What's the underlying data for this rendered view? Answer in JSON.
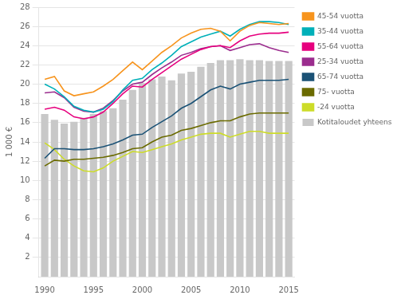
{
  "chart_data": {
    "type": "bar",
    "ylabel": "1 000 €",
    "x": [
      1990,
      1991,
      1992,
      1993,
      1994,
      1995,
      1996,
      1997,
      1998,
      1999,
      2000,
      2001,
      2002,
      2003,
      2004,
      2005,
      2006,
      2007,
      2008,
      2009,
      2010,
      2011,
      2012,
      2013,
      2014,
      2015
    ],
    "series": [
      {
        "name": "Kotitaloudet yhteensä",
        "type": "bar",
        "color": "#C8C8C8",
        "values": [
          16.9,
          16.3,
          15.9,
          16.1,
          16.5,
          16.9,
          17.2,
          17.5,
          18.4,
          19.4,
          20.1,
          20.5,
          20.8,
          20.4,
          21.1,
          21.3,
          21.8,
          22.2,
          22.5,
          22.5,
          22.6,
          22.5,
          22.5,
          22.4,
          22.4,
          22.4
        ]
      },
      {
        "name": "45-54 vuotta",
        "type": "line",
        "color": "#F7941D",
        "values": [
          20.5,
          20.8,
          19.3,
          18.8,
          19.0,
          19.2,
          19.8,
          20.5,
          21.4,
          22.3,
          21.5,
          22.4,
          23.3,
          24.0,
          24.8,
          25.3,
          25.7,
          25.8,
          25.5,
          24.5,
          25.5,
          26.1,
          26.4,
          26.3,
          26.2,
          26.3
        ]
      },
      {
        "name": "35-44 vuotta",
        "type": "line",
        "color": "#00B0B9",
        "values": [
          20.0,
          19.5,
          18.7,
          17.7,
          17.3,
          17.1,
          17.4,
          18.2,
          19.4,
          20.4,
          20.6,
          21.5,
          22.2,
          23.0,
          23.9,
          24.4,
          24.9,
          25.2,
          25.5,
          25.0,
          25.7,
          26.2,
          26.5,
          26.5,
          26.4,
          26.2
        ]
      },
      {
        "name": "55-64 vuotta",
        "type": "line",
        "color": "#E6007E",
        "values": [
          17.4,
          17.6,
          17.3,
          16.6,
          16.4,
          16.6,
          17.1,
          18.0,
          19.0,
          19.8,
          19.7,
          20.5,
          21.2,
          21.9,
          22.6,
          23.1,
          23.6,
          23.9,
          24.0,
          23.8,
          24.5,
          25.0,
          25.2,
          25.3,
          25.3,
          25.4
        ]
      },
      {
        "name": "25-34 vuotta",
        "type": "line",
        "color": "#9B2D8E",
        "values": [
          19.1,
          19.2,
          18.6,
          17.6,
          17.2,
          17.1,
          17.5,
          18.3,
          19.3,
          20.0,
          20.2,
          21.0,
          21.7,
          22.3,
          23.0,
          23.3,
          23.7,
          23.9,
          24.0,
          23.5,
          23.8,
          24.1,
          24.2,
          23.8,
          23.5,
          23.3
        ]
      },
      {
        "name": "65-74 vuotta",
        "type": "line",
        "color": "#1B5276",
        "values": [
          12.3,
          13.3,
          13.3,
          13.2,
          13.2,
          13.3,
          13.5,
          13.8,
          14.2,
          14.7,
          14.8,
          15.5,
          16.1,
          16.7,
          17.5,
          18.0,
          18.7,
          19.4,
          19.8,
          19.5,
          20.0,
          20.2,
          20.4,
          20.4,
          20.4,
          20.5
        ]
      },
      {
        "name": "75- vuotta",
        "type": "line",
        "color": "#6B6B00",
        "values": [
          11.5,
          12.1,
          12.0,
          12.2,
          12.2,
          12.3,
          12.4,
          12.6,
          12.9,
          13.3,
          13.4,
          14.0,
          14.5,
          14.7,
          15.2,
          15.4,
          15.7,
          16.0,
          16.2,
          16.2,
          16.6,
          16.9,
          17.0,
          17.0,
          17.0,
          17.0
        ]
      },
      {
        "name": "-24 vuotta",
        "type": "line",
        "color": "#CDDC29",
        "values": [
          13.9,
          13.2,
          12.2,
          11.5,
          11.0,
          10.9,
          11.3,
          12.0,
          12.5,
          13.0,
          12.9,
          13.2,
          13.5,
          13.8,
          14.2,
          14.5,
          14.8,
          14.9,
          14.9,
          14.5,
          14.8,
          15.1,
          15.1,
          14.9,
          14.9,
          14.9
        ]
      }
    ],
    "xlim": [
      1989.4,
      2015.6
    ],
    "xticks": [
      1990,
      1995,
      2000,
      2005,
      2010,
      2015
    ],
    "ylim": [
      0,
      28
    ],
    "yticks": [
      2,
      4,
      6,
      8,
      10,
      12,
      14,
      16,
      18,
      20,
      22,
      24,
      26,
      28
    ],
    "grid": true,
    "legend": "right"
  }
}
